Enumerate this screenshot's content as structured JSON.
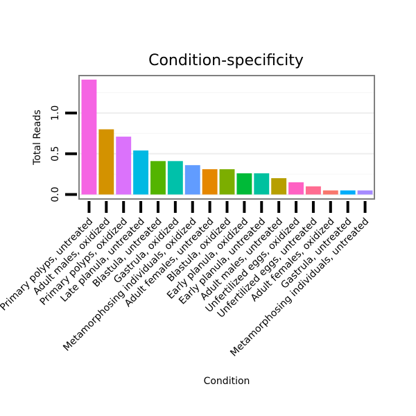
{
  "chart_data": {
    "type": "bar",
    "title": "Condition-specificity",
    "xlabel": "Condition",
    "ylabel": "Total Reads",
    "ylim": [
      0,
      1.42
    ],
    "yticks": [
      0.0,
      0.5,
      1.0
    ],
    "ytick_labels": [
      "0.0",
      "0.5",
      "1.0"
    ],
    "grid": true,
    "categories": [
      "Primary polyps, untreated",
      "Adult males, oxidized",
      "Primary polyps, oxidized",
      "Late planula, untreated",
      "Blastula, untreated",
      "Gastrula, oxidized",
      "Metamorphosing individuals, oxidized",
      "Adult females, untreated",
      "Blastula, oxidized",
      "Early planula, oxidized",
      "Early planula, untreated",
      "Adult males, untreated",
      "Unfertilized eggs, oxidized",
      "Unfertilized eggs, untreated",
      "Adult females, oxidized",
      "Gastrula, untreated",
      "Metamorphosing individuals, untreated"
    ],
    "values": [
      1.41,
      0.8,
      0.71,
      0.54,
      0.41,
      0.41,
      0.36,
      0.31,
      0.31,
      0.26,
      0.26,
      0.2,
      0.15,
      0.1,
      0.05,
      0.05,
      0.05
    ],
    "colors": [
      "#F564E3",
      "#D39200",
      "#DB72FB",
      "#00B9E3",
      "#53B400",
      "#00C1AA",
      "#619CFF",
      "#E58700",
      "#7CAE00",
      "#00BA38",
      "#00C19F",
      "#B79F00",
      "#FF61C3",
      "#FF6C91",
      "#F8766D",
      "#00ADFA",
      "#A58AFF"
    ]
  }
}
